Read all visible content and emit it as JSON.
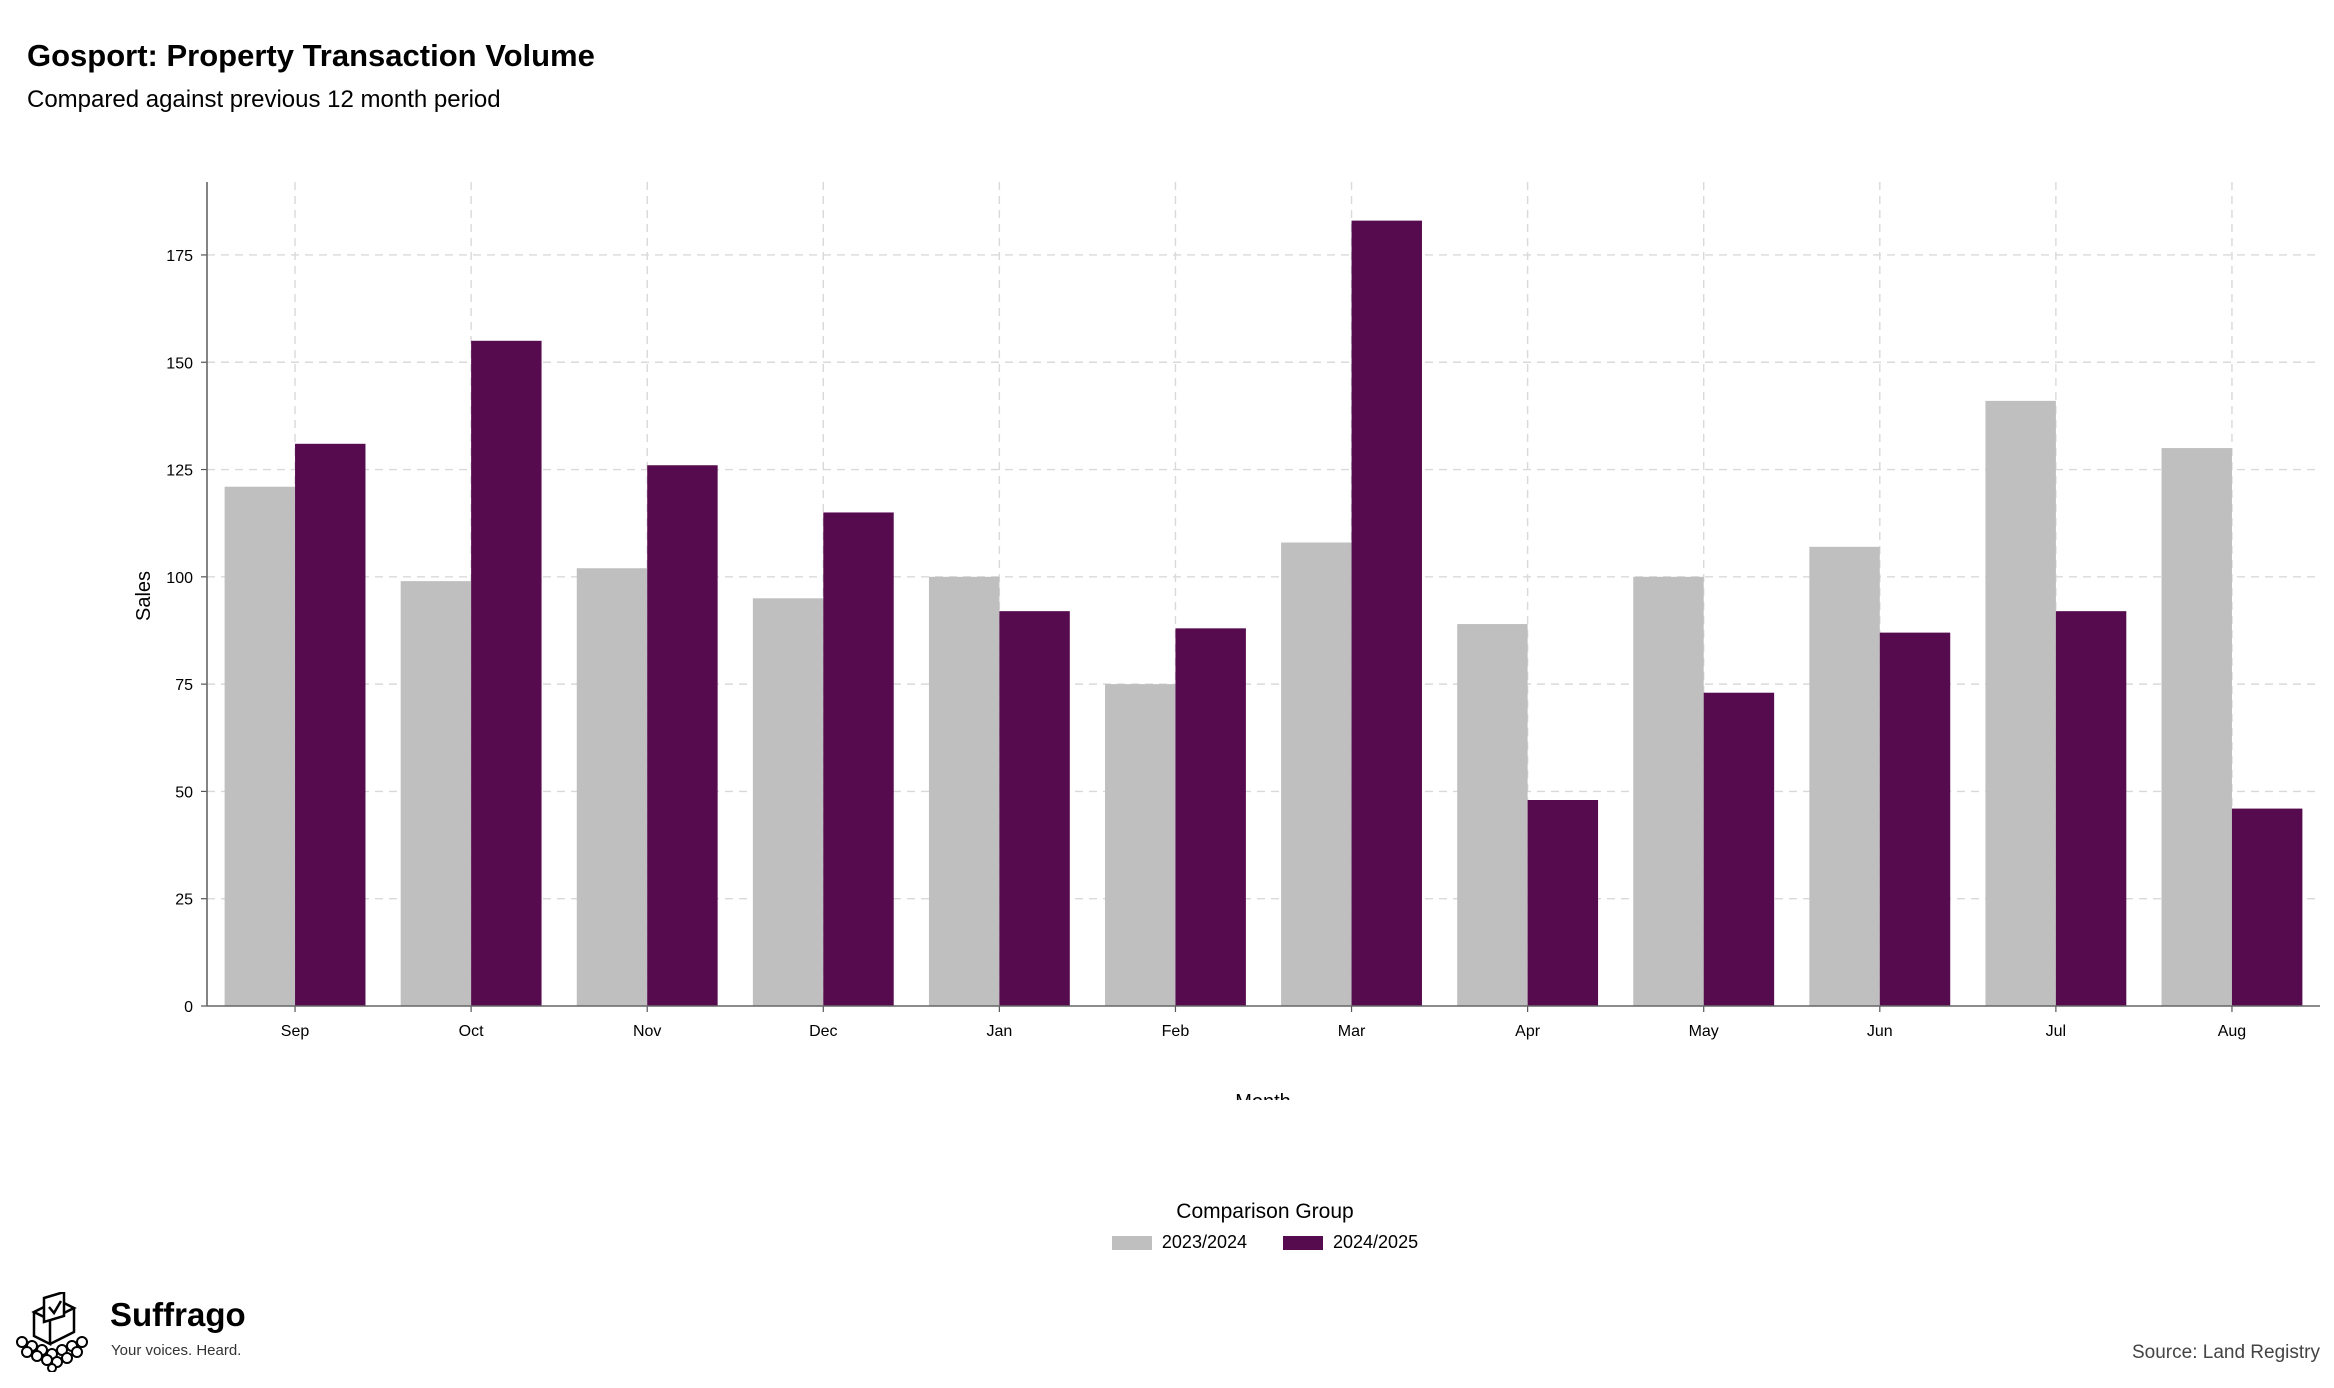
{
  "title": "Gosport: Property Transaction Volume",
  "subtitle": "Compared against previous 12 month period",
  "source": "Source: Land Registry",
  "logo": {
    "name": "Suffrago",
    "tagline": "Your voices. Heard."
  },
  "legend": {
    "title": "Comparison Group",
    "placement": "bottom-center"
  },
  "colors": {
    "2023/2024": "#bfbfbf",
    "2024/2025": "#560b4f"
  },
  "chart_data": {
    "type": "bar",
    "xlabel": "Month",
    "ylabel": "Sales",
    "ylim": [
      0,
      192
    ],
    "yticks": [
      0,
      25,
      50,
      75,
      100,
      125,
      150,
      175
    ],
    "grid": true,
    "categories": [
      "Sep",
      "Oct",
      "Nov",
      "Dec",
      "Jan",
      "Feb",
      "Mar",
      "Apr",
      "May",
      "Jun",
      "Jul",
      "Aug"
    ],
    "series": [
      {
        "name": "2023/2024",
        "values": [
          121,
          99,
          102,
          95,
          100,
          75,
          108,
          89,
          100,
          107,
          141,
          130
        ]
      },
      {
        "name": "2024/2025",
        "values": [
          131,
          155,
          126,
          115,
          92,
          88,
          183,
          48,
          73,
          87,
          92,
          46
        ]
      }
    ]
  }
}
